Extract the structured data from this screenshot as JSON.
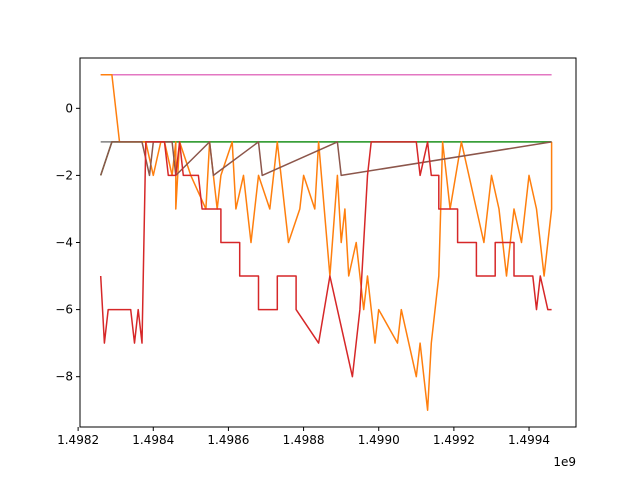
{
  "chart_data": {
    "type": "line",
    "title": "",
    "xlabel": "",
    "ylabel": "",
    "x_offset_label": "1e9",
    "xlim": [
      1.498205,
      1.499525
    ],
    "ylim": [
      -9.5,
      1.5
    ],
    "x_ticks": [
      1.4982,
      1.4984,
      1.4986,
      1.4988,
      1.499,
      1.4992,
      1.4994
    ],
    "x_tick_labels": [
      "1.4982",
      "1.4984",
      "1.4986",
      "1.4988",
      "1.4990",
      "1.4992",
      "1.4994"
    ],
    "y_ticks": [
      0,
      -2,
      -4,
      -6,
      -8
    ],
    "y_tick_labels": [
      "0",
      "−2",
      "−4",
      "−6",
      "−8"
    ],
    "grid": false,
    "legend": "none",
    "series": [
      {
        "color": "#e377c2",
        "x": [
          1.49826,
          1.49946
        ],
        "y": [
          1,
          1
        ]
      },
      {
        "color": "#7f7f7f",
        "x": [
          1.49826,
          1.49828,
          1.49946
        ],
        "y": [
          -1,
          -1,
          -1
        ]
      },
      {
        "color": "#2ca02c",
        "x": [
          1.49826,
          1.49829,
          1.49946
        ],
        "y": [
          -2,
          -1,
          -1
        ]
      },
      {
        "color": "#ff7f0e",
        "x": [
          1.49826,
          1.49829,
          1.49829,
          1.49831,
          1.49838,
          1.49839,
          1.4984,
          1.49841,
          1.49842,
          1.49843,
          1.49845,
          1.49846,
          1.49846,
          1.49847,
          1.4985,
          1.49854,
          1.49855,
          1.49857,
          1.49858,
          1.49861,
          1.49862,
          1.49864,
          1.49865,
          1.49866,
          1.49868,
          1.49871,
          1.49873,
          1.49876,
          1.49879,
          1.4988,
          1.49883,
          1.49884,
          1.49887,
          1.49889,
          1.4989,
          1.49891,
          1.49892,
          1.49894,
          1.49896,
          1.49897,
          1.49899,
          1.499,
          1.49905,
          1.49906,
          1.4991,
          1.49911,
          1.49913,
          1.49914,
          1.49916,
          1.49917,
          1.49918,
          1.49919,
          1.49922,
          1.49924,
          1.49926,
          1.49928,
          1.4993,
          1.49932,
          1.49934,
          1.49936,
          1.49938,
          1.4994,
          1.49942,
          1.49944,
          1.49946,
          1.49946
        ],
        "y": [
          1,
          1,
          1,
          -1,
          -1,
          -1.5,
          -2,
          -1.5,
          -1,
          -1,
          -2,
          -1,
          -3,
          -1,
          -2,
          -3,
          -1,
          -3,
          -2,
          -1,
          -3,
          -2,
          -3,
          -4,
          -2,
          -3,
          -1,
          -4,
          -3,
          -2,
          -3,
          -1,
          -5,
          -2,
          -4,
          -3,
          -5,
          -4,
          -6,
          -5,
          -7,
          -6,
          -7,
          -6,
          -8,
          -7,
          -9,
          -7,
          -5,
          -1,
          -2,
          -3,
          -1,
          -2,
          -3,
          -4,
          -2,
          -3,
          -5,
          -3,
          -4,
          -2,
          -3,
          -5,
          -3,
          -1
        ]
      },
      {
        "color": "#8c564b",
        "x": [
          1.49826,
          1.49829,
          1.49837,
          1.49839,
          1.4984,
          1.49841,
          1.49845,
          1.49846,
          1.49855,
          1.49856,
          1.49868,
          1.49869,
          1.49889,
          1.4989,
          1.49946
        ],
        "y": [
          -2,
          -1,
          -1,
          -2,
          -1,
          -1,
          -1,
          -2,
          -1,
          -2,
          -1,
          -2,
          -1,
          -2,
          -1
        ]
      },
      {
        "color": "#d62728",
        "x": [
          1.49826,
          1.49827,
          1.49828,
          1.49829,
          1.49834,
          1.49835,
          1.49836,
          1.49837,
          1.49837,
          1.49838,
          1.49839,
          1.4984,
          1.49843,
          1.49844,
          1.49846,
          1.49847,
          1.49848,
          1.49852,
          1.49853,
          1.49853,
          1.49858,
          1.49858,
          1.49863,
          1.49863,
          1.49868,
          1.49868,
          1.49873,
          1.49873,
          1.49878,
          1.49878,
          1.49884,
          1.49887,
          1.49889,
          1.49891,
          1.49893,
          1.49895,
          1.49897,
          1.49898,
          1.49899,
          1.499,
          1.4991,
          1.49911,
          1.49913,
          1.49914,
          1.49916,
          1.49916,
          1.49921,
          1.49921,
          1.49926,
          1.49926,
          1.49931,
          1.49931,
          1.49936,
          1.49936,
          1.49941,
          1.49942,
          1.49943,
          1.49945,
          1.49946
        ],
        "y": [
          -5,
          -7,
          -6,
          -6,
          -6,
          -7,
          -6,
          -7,
          -7,
          -1,
          -1,
          -1,
          -1,
          -2,
          -2,
          -1,
          -2,
          -2,
          -3,
          -3,
          -3,
          -4,
          -4,
          -5,
          -5,
          -6,
          -6,
          -5,
          -5,
          -6,
          -7,
          -5,
          -6,
          -7,
          -8,
          -6,
          -2,
          -1,
          -1,
          -1,
          -1,
          -2,
          -1,
          -2,
          -2,
          -3,
          -3,
          -4,
          -4,
          -5,
          -5,
          -4,
          -4,
          -5,
          -5,
          -6,
          -5,
          -6,
          -6
        ]
      }
    ]
  }
}
